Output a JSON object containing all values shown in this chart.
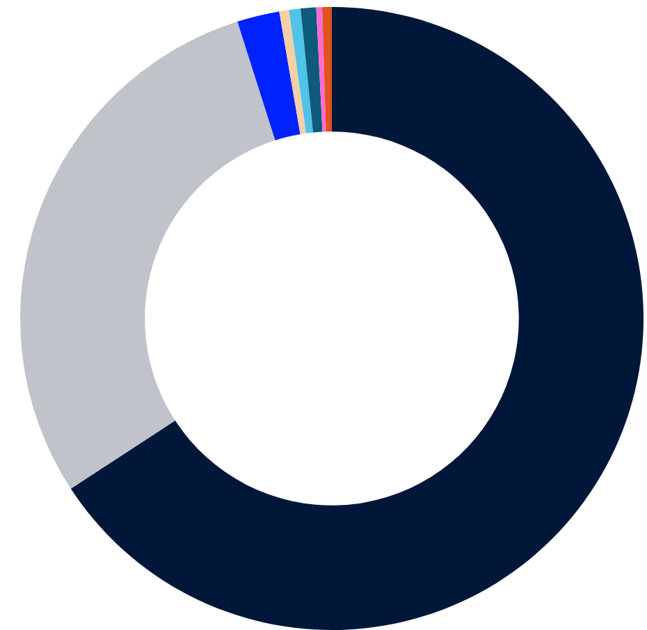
{
  "chart_data": {
    "type": "donut",
    "categories": [
      null,
      null,
      null,
      null,
      null,
      null,
      null,
      null
    ],
    "values": [
      65.8,
      29.3,
      2.2,
      0.5,
      0.6,
      0.8,
      0.3,
      0.5
    ],
    "colors": [
      "#00173a",
      "#c0c3c9",
      "#0022ff",
      "#f5cfa5",
      "#4fc3e8",
      "#0d5a7a",
      "#ff6bd5",
      "#e0521f"
    ],
    "legend": false
  }
}
